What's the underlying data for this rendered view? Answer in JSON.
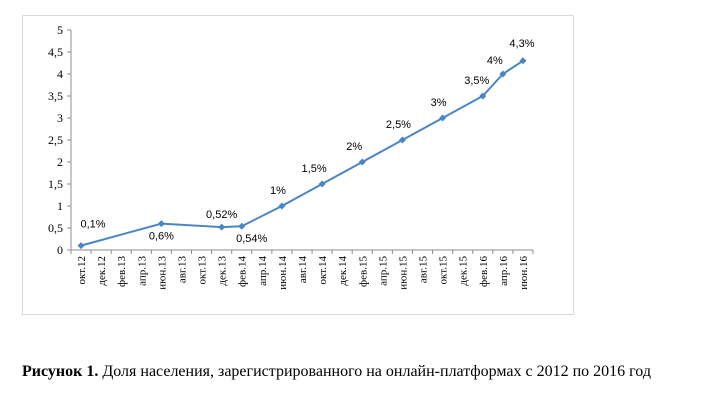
{
  "chart_data": {
    "type": "line",
    "categories": [
      "окт.12",
      "дек.12",
      "фев.13",
      "апр.13",
      "июн.13",
      "авг.13",
      "окт.13",
      "дек.13",
      "фев.14",
      "апр.14",
      "июн.14",
      "авг.14",
      "окт.14",
      "дек.14",
      "фев.15",
      "апр.15",
      "июн.15",
      "авг.15",
      "окт.15",
      "дек.15",
      "фев.16",
      "апр.16",
      "июн.16"
    ],
    "points": [
      {
        "x": "окт.12",
        "y": 0.1,
        "label": "0,1%"
      },
      {
        "x": "июн.13",
        "y": 0.6,
        "label": "0,6%"
      },
      {
        "x": "дек.13",
        "y": 0.52,
        "label": "0,52%"
      },
      {
        "x": "фев.14",
        "y": 0.54,
        "label": "0,54%"
      },
      {
        "x": "июн.14",
        "y": 1.0,
        "label": "1%"
      },
      {
        "x": "окт.14",
        "y": 1.5,
        "label": "1,5%"
      },
      {
        "x": "фев.15",
        "y": 2.0,
        "label": "2%"
      },
      {
        "x": "июн.15",
        "y": 2.5,
        "label": "2,5%"
      },
      {
        "x": "окт.15",
        "y": 3.0,
        "label": "3%"
      },
      {
        "x": "фев.16",
        "y": 3.5,
        "label": "3,5%"
      },
      {
        "x": "апр.16",
        "y": 4.0,
        "label": "4%"
      },
      {
        "x": "июн.16",
        "y": 4.3,
        "label": "4,3%"
      }
    ],
    "yticks": [
      "0",
      "0,5",
      "1",
      "1,5",
      "2",
      "2,5",
      "3",
      "3,5",
      "4",
      "4,5",
      "5"
    ],
    "ylim": [
      0,
      5
    ],
    "grid": false,
    "title": "",
    "xlabel": "",
    "ylabel": "",
    "line_color": "#4a86c5"
  },
  "caption": {
    "label": "Рисунок 1.",
    "text": " Доля населения, зарегистрированного на онлайн-платформах с 2012 по 2016 год"
  }
}
